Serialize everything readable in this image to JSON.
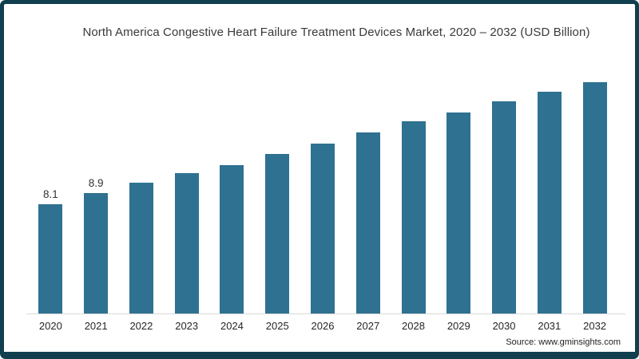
{
  "title": "North America Congestive Heart Failure Treatment Devices Market, 2020 – 2032 (USD Billion)",
  "source": "Source: www.gminsights.com",
  "colors": {
    "frame_border": "#113f4e",
    "background": "#ffffff",
    "bar": "#2f7191",
    "axis_line": "#d9d9d9",
    "title_text": "#3a3a3a",
    "tick_text": "#262626"
  },
  "chart_data": {
    "type": "bar",
    "title": "North America Congestive Heart Failure Treatment Devices Market, 2020 – 2032 (USD Billion)",
    "categories": [
      "2020",
      "2021",
      "2022",
      "2023",
      "2024",
      "2025",
      "2026",
      "2027",
      "2028",
      "2029",
      "2030",
      "2031",
      "2032"
    ],
    "values": [
      8.1,
      8.9,
      9.7,
      10.4,
      11.0,
      11.8,
      12.6,
      13.4,
      14.2,
      14.9,
      15.7,
      16.4,
      17.1
    ],
    "data_labels": [
      "8.1",
      "8.9",
      "",
      "",
      "",
      "",
      "",
      "",
      "",
      "",
      "",
      "",
      ""
    ],
    "xlabel": "",
    "ylabel": "",
    "units": "USD Billion",
    "ylim": [
      0,
      18
    ],
    "grid": false,
    "legend": false,
    "bar_color": "#2f7191"
  }
}
